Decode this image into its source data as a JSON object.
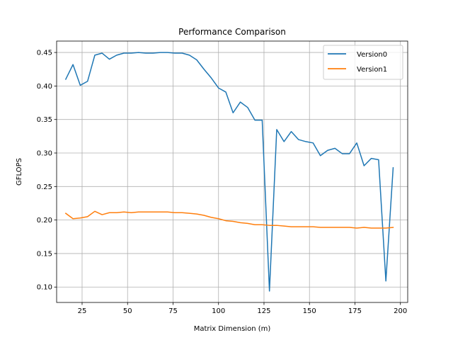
{
  "chart_data": {
    "type": "line",
    "title": "Performance Comparison",
    "xlabel": "Matrix Dimension (m)",
    "ylabel": "GFLOPS",
    "xlim": [
      11,
      204
    ],
    "ylim": [
      0.077,
      0.467
    ],
    "xticks": [
      25,
      50,
      75,
      100,
      125,
      150,
      175,
      200
    ],
    "yticks": [
      0.1,
      0.15,
      0.2,
      0.25,
      0.3,
      0.35,
      0.4,
      0.45
    ],
    "grid": true,
    "legend_position": "top-right",
    "x": [
      16,
      20,
      24,
      28,
      32,
      36,
      40,
      44,
      48,
      52,
      56,
      60,
      64,
      68,
      72,
      76,
      80,
      84,
      88,
      92,
      96,
      100,
      104,
      108,
      112,
      116,
      120,
      124,
      128,
      132,
      136,
      140,
      144,
      148,
      152,
      156,
      160,
      164,
      168,
      172,
      176,
      180,
      184,
      188,
      192,
      196
    ],
    "series": [
      {
        "name": "Version0",
        "color": "#1f77b4",
        "values": [
          0.41,
          0.432,
          0.401,
          0.407,
          0.446,
          0.449,
          0.44,
          0.446,
          0.449,
          0.449,
          0.45,
          0.449,
          0.449,
          0.45,
          0.45,
          0.449,
          0.449,
          0.446,
          0.439,
          0.425,
          0.412,
          0.397,
          0.391,
          0.36,
          0.376,
          0.368,
          0.349,
          0.349,
          0.094,
          0.335,
          0.317,
          0.332,
          0.32,
          0.317,
          0.315,
          0.296,
          0.304,
          0.307,
          0.299,
          0.299,
          0.315,
          0.281,
          0.292,
          0.29,
          0.109,
          0.278
        ]
      },
      {
        "name": "Version1",
        "color": "#ff7f0e",
        "values": [
          0.21,
          0.202,
          0.203,
          0.205,
          0.213,
          0.208,
          0.211,
          0.211,
          0.212,
          0.211,
          0.212,
          0.212,
          0.212,
          0.212,
          0.212,
          0.211,
          0.211,
          0.21,
          0.209,
          0.207,
          0.204,
          0.202,
          0.199,
          0.198,
          0.196,
          0.195,
          0.193,
          0.193,
          0.192,
          0.192,
          0.191,
          0.19,
          0.19,
          0.19,
          0.19,
          0.189,
          0.189,
          0.189,
          0.189,
          0.189,
          0.188,
          0.189,
          0.188,
          0.188,
          0.188,
          0.189
        ]
      }
    ]
  }
}
